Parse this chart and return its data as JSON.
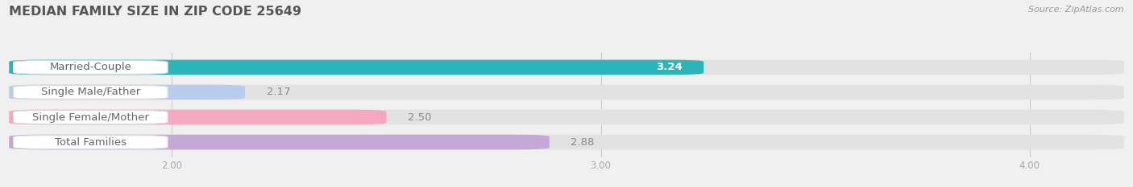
{
  "title": "MEDIAN FAMILY SIZE IN ZIP CODE 25649",
  "source": "Source: ZipAtlas.com",
  "categories": [
    "Married-Couple",
    "Single Male/Father",
    "Single Female/Mother",
    "Total Families"
  ],
  "values": [
    3.24,
    2.17,
    2.5,
    2.88
  ],
  "bar_colors": [
    "#2bb5b8",
    "#b8ccee",
    "#f5a8c0",
    "#c4a8d8"
  ],
  "background_color": "#f0f0f0",
  "bar_bg_color": "#e2e2e2",
  "xlim_min": 1.62,
  "xlim_max": 4.22,
  "xticks": [
    2.0,
    3.0,
    4.0
  ],
  "xtick_labels": [
    "2.00",
    "3.00",
    "4.00"
  ],
  "bar_height": 0.6,
  "label_fontsize": 9.5,
  "title_fontsize": 11.5,
  "value_fontsize": 9.5,
  "pill_color": "#ffffff",
  "pill_border_color": "#dddddd",
  "label_color": "#666666",
  "value_color_inside": "#ffffff",
  "value_color_outside": "#888888"
}
